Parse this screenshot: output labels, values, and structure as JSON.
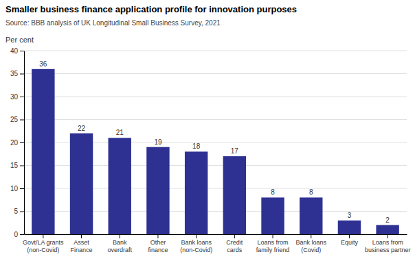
{
  "chart_data": {
    "type": "bar",
    "title": "Smaller business finance application profile for innovation purposes",
    "subtitle": "Source: BBB analysis of UK Longitudinal Small Business Survey, 2021",
    "ylabel": "Per cent",
    "categories": [
      "Govt/LA grants\n(non-Covid)",
      "Asset\nFinance",
      "Bank\noverdraft",
      "Other\nfinance",
      "Bank loans\n(non-Covid)",
      "Credit\ncards",
      "Loans from\nfamily friend",
      "Bank loans\n(Covid)",
      "Equity",
      "Loans from\nbusiness partner"
    ],
    "values": [
      36,
      22,
      21,
      19,
      18,
      17,
      8,
      8,
      3,
      2
    ],
    "color": "#2e3192",
    "ylim": [
      0,
      40
    ],
    "yticks": [
      0,
      5,
      10,
      15,
      20,
      25,
      30,
      35,
      40
    ],
    "grid": true,
    "data_labels": true
  }
}
